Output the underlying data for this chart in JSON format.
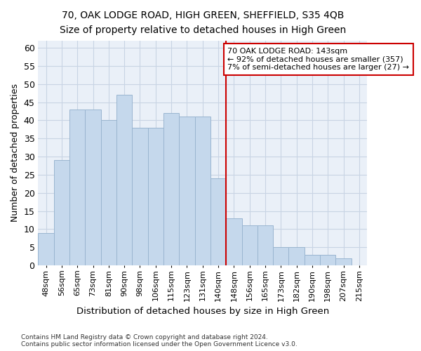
{
  "title": "70, OAK LODGE ROAD, HIGH GREEN, SHEFFIELD, S35 4QB",
  "subtitle": "Size of property relative to detached houses in High Green",
  "xlabel": "Distribution of detached houses by size in High Green",
  "ylabel": "Number of detached properties",
  "bar_labels": [
    "48sqm",
    "56sqm",
    "65sqm",
    "73sqm",
    "81sqm",
    "90sqm",
    "98sqm",
    "106sqm",
    "115sqm",
    "123sqm",
    "131sqm",
    "140sqm",
    "148sqm",
    "156sqm",
    "165sqm",
    "173sqm",
    "182sqm",
    "190sqm",
    "198sqm",
    "207sqm",
    "215sqm"
  ],
  "bar_values": [
    9,
    29,
    43,
    43,
    40,
    47,
    38,
    38,
    42,
    41,
    41,
    24,
    13,
    11,
    11,
    5,
    5,
    3,
    3,
    2,
    0
  ],
  "bar_color": "#c5d8ec",
  "bar_edge_color": "#9ab5d0",
  "vline_color": "#cc0000",
  "annotation_text": "70 OAK LODGE ROAD: 143sqm\n← 92% of detached houses are smaller (357)\n7% of semi-detached houses are larger (27) →",
  "annotation_box_color": "#ffffff",
  "annotation_box_edge": "#cc0000",
  "ylim": [
    0,
    62
  ],
  "yticks": [
    0,
    5,
    10,
    15,
    20,
    25,
    30,
    35,
    40,
    45,
    50,
    55,
    60
  ],
  "grid_color": "#c8d4e4",
  "background_color": "#eaf0f8",
  "footer": "Contains HM Land Registry data © Crown copyright and database right 2024.\nContains public sector information licensed under the Open Government Licence v3.0.",
  "title_fontsize": 11,
  "subtitle_fontsize": 10
}
